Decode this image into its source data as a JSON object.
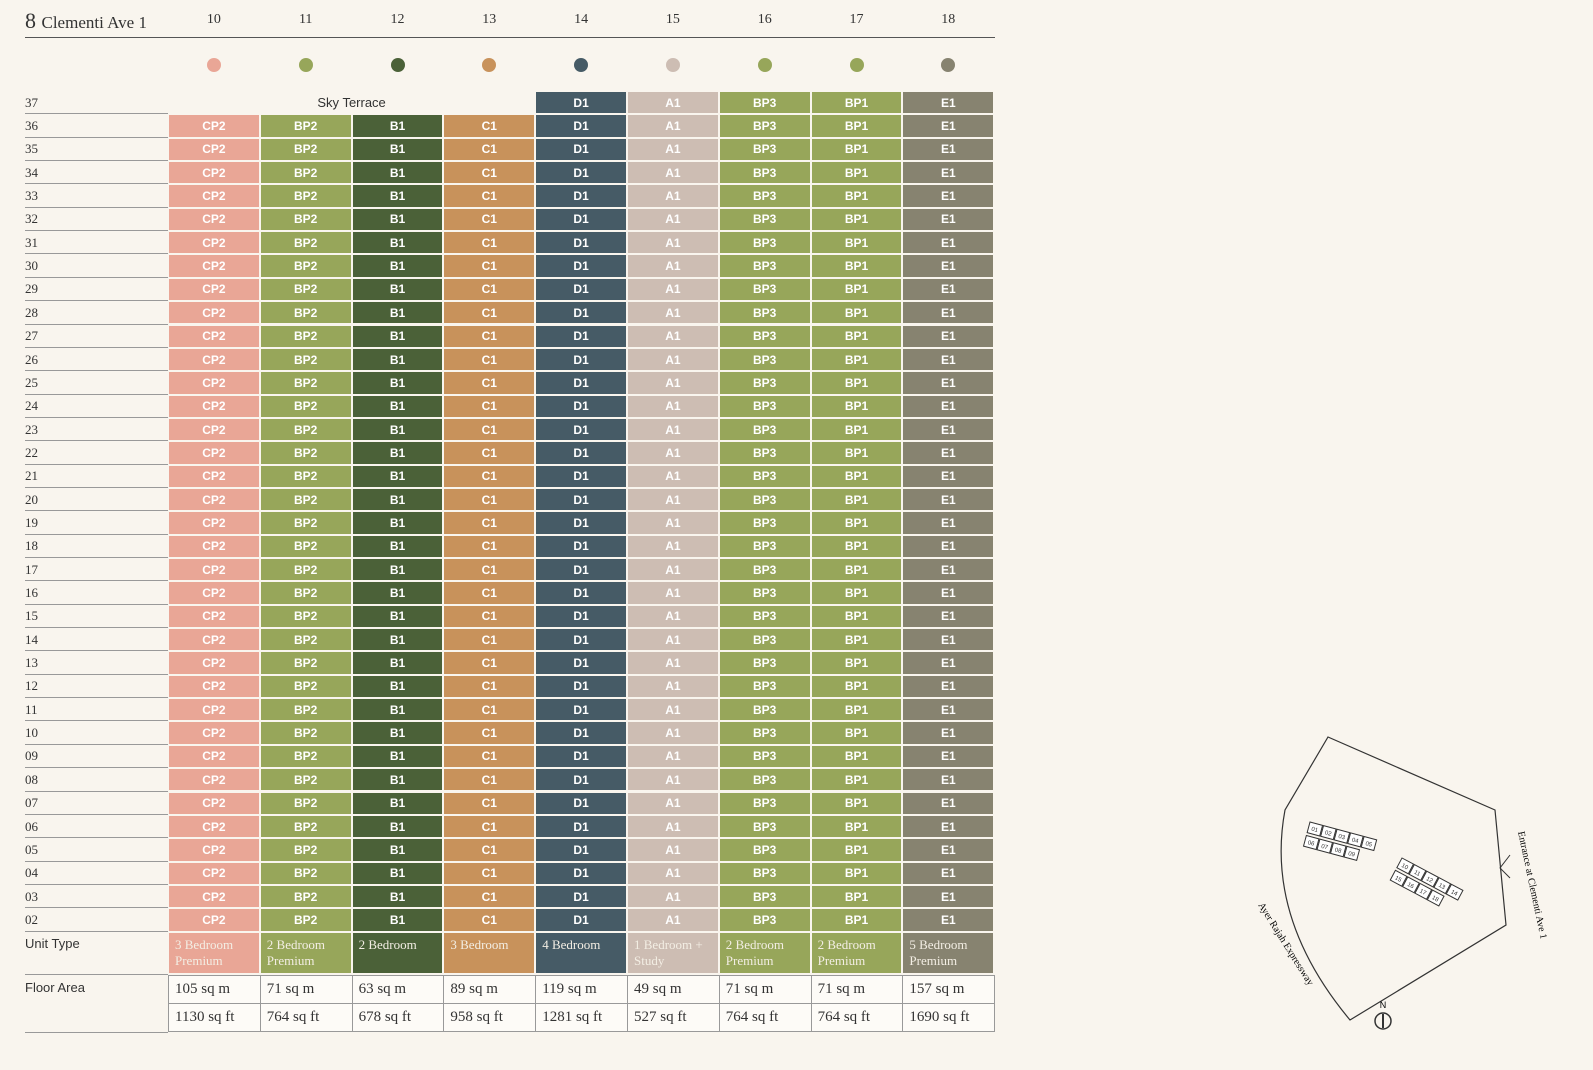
{
  "title_number": "8",
  "title_text": "Clementi Ave 1",
  "stacks": [
    {
      "stack": "10",
      "color": "#e9a696",
      "unit": "CP2",
      "unit_type": "3 Bedroom Premium",
      "area_sqm": "105 sq m",
      "area_sqft": "1130 sq ft"
    },
    {
      "stack": "11",
      "color": "#97a65a",
      "unit": "BP2",
      "unit_type": "2 Bedroom Premium",
      "area_sqm": "71 sq m",
      "area_sqft": "764 sq ft"
    },
    {
      "stack": "12",
      "color": "#4b6138",
      "unit": "B1",
      "unit_type": "2 Bedroom",
      "area_sqm": "63 sq m",
      "area_sqft": "678 sq ft"
    },
    {
      "stack": "13",
      "color": "#c8925b",
      "unit": "C1",
      "unit_type": "3 Bedroom",
      "area_sqm": "89 sq m",
      "area_sqft": "958 sq ft"
    },
    {
      "stack": "14",
      "color": "#465b66",
      "unit": "D1",
      "unit_type": "4 Bedroom",
      "area_sqm": "119 sq m",
      "area_sqft": "1281 sq ft"
    },
    {
      "stack": "15",
      "color": "#cdbdb3",
      "unit": "A1",
      "unit_type": "1 Bedroom + Study",
      "area_sqm": "49 sq m",
      "area_sqft": "527 sq ft"
    },
    {
      "stack": "16",
      "color": "#97a65a",
      "unit": "BP3",
      "unit_type": "2 Bedroom Premium",
      "area_sqm": "71 sq m",
      "area_sqft": "764 sq ft"
    },
    {
      "stack": "17",
      "color": "#97a65a",
      "unit": "BP1",
      "unit_type": "2 Bedroom Premium",
      "area_sqm": "71 sq m",
      "area_sqft": "764 sq ft"
    },
    {
      "stack": "18",
      "color": "#878370",
      "unit": "E1",
      "unit_type": "5 Bedroom Premium",
      "area_sqm": "157 sq m",
      "area_sqft": "1690 sq ft"
    }
  ],
  "floors": [
    "37",
    "36",
    "35",
    "34",
    "33",
    "32",
    "31",
    "30",
    "29",
    "28",
    "27",
    "26",
    "25",
    "24",
    "23",
    "22",
    "21",
    "20",
    "19",
    "18",
    "17",
    "16",
    "15",
    "14",
    "13",
    "12",
    "11",
    "10",
    "09",
    "08",
    "07",
    "06",
    "05",
    "04",
    "03",
    "02"
  ],
  "sky_terrace": "Sky Terrace",
  "unit_type_label": "Unit Type",
  "floor_area_label": "Floor Area",
  "site_map": {
    "entrance": "Entrance at Clementi Ave 1",
    "expressway": "Ayer Rajah Expressway",
    "north": "N",
    "blocks_west": [
      "01",
      "02",
      "03",
      "04",
      "05",
      "06",
      "07",
      "08",
      "09"
    ],
    "blocks_east": [
      "10",
      "11",
      "12",
      "13",
      "14",
      "15",
      "16",
      "17",
      "18"
    ]
  }
}
